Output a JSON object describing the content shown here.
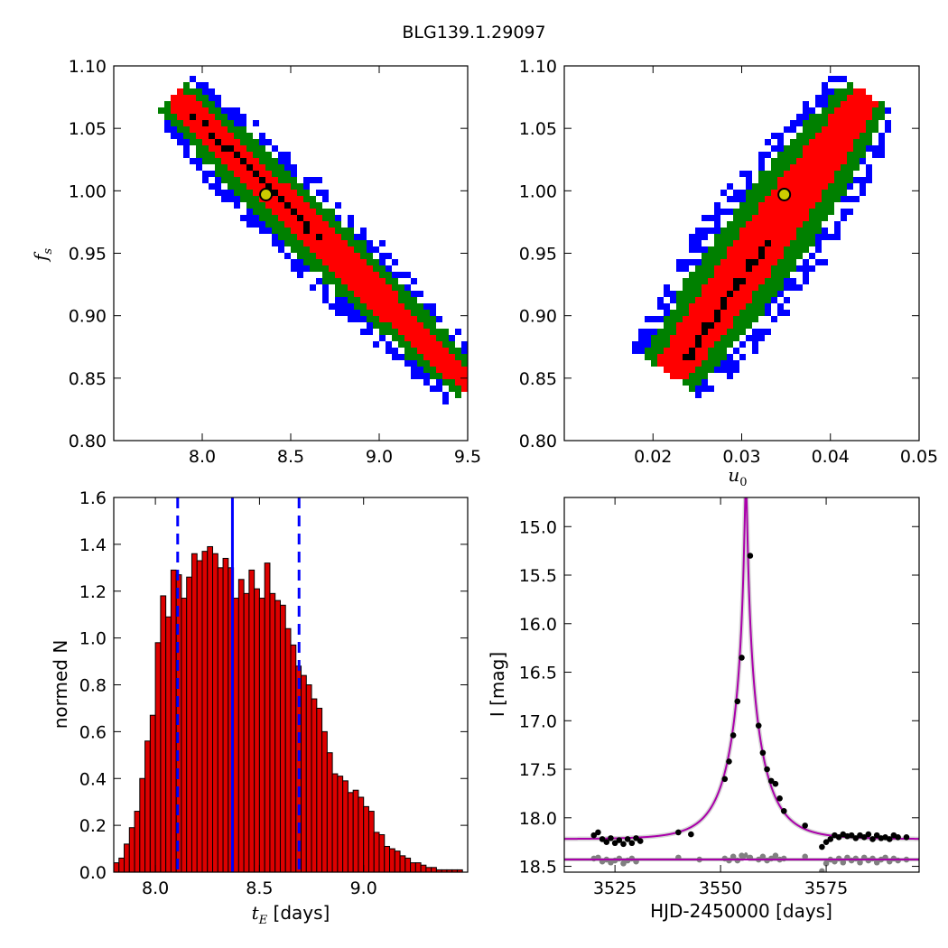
{
  "figure_title": "BLG139.1.29097",
  "colors": {
    "sigma1": "#ff0000",
    "sigma2": "#008000",
    "sigma3": "#0000ff",
    "best": "#000000",
    "marker_edge": "#000000",
    "marker_face": "#cccc00",
    "hist_fill": "#dd0000",
    "model_line": "#aa00aa",
    "data_black": "#000000",
    "data_gray": "#808080",
    "vline": "#0000ff"
  },
  "chart_data": [
    {
      "type": "heatmap",
      "name_of_panel": "tE-fs",
      "xlabel": "",
      "ylabel_math": "f",
      "ylabel_sub": "s",
      "xlim": [
        7.5,
        9.5
      ],
      "ylim": [
        0.8,
        1.1
      ],
      "xticks": [
        "8.0",
        "8.5",
        "9.0",
        "9.5"
      ],
      "xtick_values": [
        8.0,
        8.5,
        9.0,
        9.5
      ],
      "yticks": [
        "0.80",
        "0.85",
        "0.90",
        "0.95",
        "1.00",
        "1.05",
        "1.10"
      ],
      "ytick_values": [
        0.8,
        0.85,
        0.9,
        0.95,
        1.0,
        1.05,
        1.1
      ],
      "band": {
        "x0": 7.85,
        "y0": 1.075,
        "x1": 9.5,
        "y1": 0.845,
        "slope_note": "correlation band"
      },
      "best_marker": {
        "x": 8.36,
        "y": 0.997
      },
      "grid": false
    },
    {
      "type": "heatmap",
      "name_of_panel": "u0-fs",
      "xlabel_math": "u",
      "xlabel_sub": "0",
      "ylabel": "",
      "xlim": [
        0.01,
        0.05
      ],
      "ylim": [
        0.8,
        1.1
      ],
      "xticks": [
        "0.02",
        "0.03",
        "0.04",
        "0.05"
      ],
      "xtick_values": [
        0.02,
        0.03,
        0.04,
        0.05
      ],
      "yticks": [
        "0.80",
        "0.85",
        "0.90",
        "0.95",
        "1.00",
        "1.05",
        "1.10"
      ],
      "ytick_values": [
        0.8,
        0.85,
        0.9,
        0.95,
        1.0,
        1.05,
        1.1
      ],
      "band": {
        "x0": 0.022,
        "y0": 0.855,
        "x1": 0.044,
        "y1": 1.075
      },
      "best_marker": {
        "x": 0.0348,
        "y": 0.997
      },
      "grid": false
    },
    {
      "type": "bar",
      "name_of_panel": "tE-histogram",
      "xlabel_math": "t",
      "xlabel_sub": "E",
      "xlabel_rest": " [days]",
      "ylabel": "normed N",
      "xlim": [
        7.8,
        9.5
      ],
      "ylim": [
        0.0,
        1.6
      ],
      "xticks": [
        "8.0",
        "8.5",
        "9.0"
      ],
      "xtick_values": [
        8.0,
        8.5,
        9.0
      ],
      "yticks": [
        "0.0",
        "0.2",
        "0.4",
        "0.6",
        "0.8",
        "1.0",
        "1.2",
        "1.4",
        "1.6"
      ],
      "ytick_values": [
        0.0,
        0.2,
        0.4,
        0.6,
        0.8,
        1.0,
        1.2,
        1.4,
        1.6
      ],
      "bin_start": 7.8,
      "bin_width": 0.025,
      "values": [
        0.04,
        0.06,
        0.12,
        0.19,
        0.26,
        0.4,
        0.56,
        0.67,
        0.98,
        1.18,
        1.09,
        1.29,
        1.27,
        1.17,
        1.26,
        1.36,
        1.33,
        1.37,
        1.39,
        1.36,
        1.3,
        1.34,
        1.3,
        1.17,
        1.25,
        1.19,
        1.29,
        1.21,
        1.17,
        1.32,
        1.19,
        1.16,
        1.14,
        1.04,
        0.97,
        0.88,
        0.84,
        0.8,
        0.74,
        0.7,
        0.6,
        0.51,
        0.42,
        0.41,
        0.39,
        0.34,
        0.35,
        0.32,
        0.28,
        0.26,
        0.17,
        0.16,
        0.11,
        0.1,
        0.09,
        0.07,
        0.06,
        0.04,
        0.04,
        0.03,
        0.02,
        0.02,
        0.01,
        0.01,
        0.01,
        0.01,
        0.01
      ],
      "vlines": [
        {
          "x": 8.107,
          "style": "dashed"
        },
        {
          "x": 8.37,
          "style": "solid"
        },
        {
          "x": 8.69,
          "style": "dashed"
        }
      ]
    },
    {
      "type": "line",
      "name_of_panel": "light-curve",
      "xlabel": "HJD-2450000 [days]",
      "ylabel": "I [mag]",
      "xlim": [
        3513,
        3597
      ],
      "ylim": [
        18.56,
        14.7
      ],
      "y_inverted": true,
      "xticks": [
        "3525",
        "3550",
        "3575"
      ],
      "xtick_values": [
        3525,
        3550,
        3575
      ],
      "yticks": [
        "15.0",
        "15.5",
        "16.0",
        "16.5",
        "17.0",
        "17.5",
        "18.0",
        "18.5"
      ],
      "ytick_values": [
        15.0,
        15.5,
        16.0,
        16.5,
        17.0,
        17.5,
        18.0,
        18.5
      ],
      "model": {
        "t0": 3556,
        "u0": 0.0348,
        "tE": 8.36,
        "fs": 0.997,
        "baseline": 18.22
      },
      "residual_line": 18.43,
      "points": [
        [
          3520,
          18.18
        ],
        [
          3521,
          18.15
        ],
        [
          3522,
          18.22
        ],
        [
          3523,
          18.25
        ],
        [
          3524,
          18.21
        ],
        [
          3525,
          18.26
        ],
        [
          3526,
          18.23
        ],
        [
          3527,
          18.27
        ],
        [
          3528,
          18.22
        ],
        [
          3529,
          18.26
        ],
        [
          3530,
          18.21
        ],
        [
          3531,
          18.24
        ],
        [
          3540,
          18.15
        ],
        [
          3543,
          18.17
        ],
        [
          3551,
          17.6
        ],
        [
          3552,
          17.42
        ],
        [
          3553,
          17.15
        ],
        [
          3554,
          16.8
        ],
        [
          3555,
          16.35
        ],
        [
          3557,
          15.3
        ],
        [
          3559,
          17.05
        ],
        [
          3560,
          17.33
        ],
        [
          3561,
          17.5
        ],
        [
          3562,
          17.62
        ],
        [
          3563,
          17.65
        ],
        [
          3564,
          17.8
        ],
        [
          3565,
          17.93
        ],
        [
          3570,
          18.08
        ],
        [
          3574,
          18.3
        ],
        [
          3575,
          18.25
        ],
        [
          3576,
          18.22
        ],
        [
          3577,
          18.18
        ],
        [
          3578,
          18.2
        ],
        [
          3579,
          18.17
        ],
        [
          3580,
          18.19
        ],
        [
          3581,
          18.18
        ],
        [
          3582,
          18.21
        ],
        [
          3583,
          18.18
        ],
        [
          3584,
          18.2
        ],
        [
          3585,
          18.17
        ],
        [
          3586,
          18.22
        ],
        [
          3587,
          18.18
        ],
        [
          3588,
          18.21
        ],
        [
          3589,
          18.2
        ],
        [
          3590,
          18.22
        ],
        [
          3591,
          18.18
        ],
        [
          3592,
          18.2
        ],
        [
          3594,
          18.2
        ]
      ],
      "residuals": [
        [
          3520,
          18.42
        ],
        [
          3521,
          18.41
        ],
        [
          3522,
          18.45
        ],
        [
          3523,
          18.43
        ],
        [
          3524,
          18.46
        ],
        [
          3525,
          18.44
        ],
        [
          3526,
          18.42
        ],
        [
          3527,
          18.47
        ],
        [
          3528,
          18.44
        ],
        [
          3529,
          18.42
        ],
        [
          3530,
          18.45
        ],
        [
          3540,
          18.41
        ],
        [
          3545,
          18.43
        ],
        [
          3551,
          18.42
        ],
        [
          3552,
          18.44
        ],
        [
          3553,
          18.4
        ],
        [
          3554,
          18.44
        ],
        [
          3555,
          18.39
        ],
        [
          3557,
          18.41
        ],
        [
          3559,
          18.43
        ],
        [
          3560,
          18.4
        ],
        [
          3561,
          18.44
        ],
        [
          3562,
          18.42
        ],
        [
          3563,
          18.39
        ],
        [
          3564,
          18.43
        ],
        [
          3565,
          18.42
        ],
        [
          3570,
          18.4
        ],
        [
          3574,
          18.55
        ],
        [
          3575,
          18.47
        ],
        [
          3576,
          18.43
        ],
        [
          3577,
          18.45
        ],
        [
          3578,
          18.42
        ],
        [
          3579,
          18.46
        ],
        [
          3580,
          18.41
        ],
        [
          3581,
          18.44
        ],
        [
          3582,
          18.42
        ],
        [
          3583,
          18.46
        ],
        [
          3584,
          18.41
        ],
        [
          3585,
          18.44
        ],
        [
          3586,
          18.42
        ],
        [
          3587,
          18.46
        ],
        [
          3588,
          18.43
        ],
        [
          3589,
          18.41
        ],
        [
          3590,
          18.45
        ],
        [
          3591,
          18.42
        ],
        [
          3592,
          18.44
        ],
        [
          3594,
          18.43
        ]
      ]
    }
  ]
}
